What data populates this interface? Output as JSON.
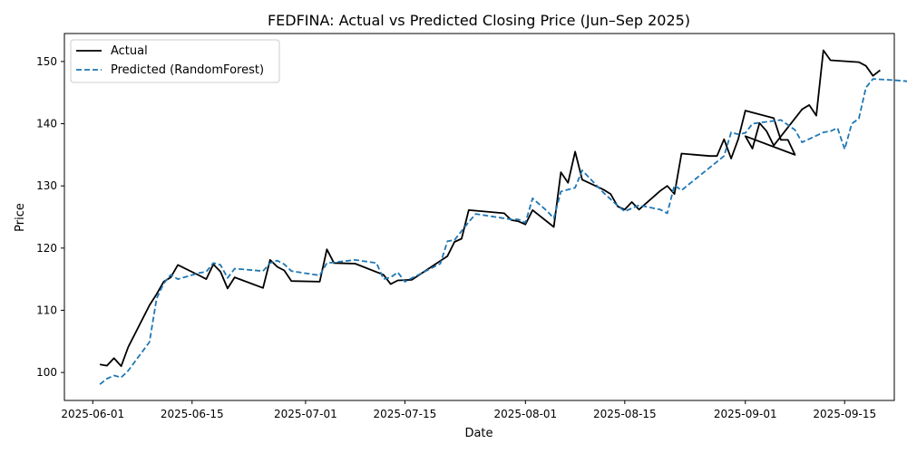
{
  "chart_data": {
    "type": "line",
    "title": "FEDFINA: Actual vs Predicted Closing Price (Jun–Sep 2025)",
    "xlabel": "Date",
    "ylabel": "Price",
    "xlim": [
      "2025-05-28",
      "2025-09-22"
    ],
    "ylim": [
      95.5,
      154.5
    ],
    "grid": false,
    "legend_placement": "top-left",
    "x_ticks": [
      "2025-06-01",
      "2025-06-15",
      "2025-07-01",
      "2025-07-15",
      "2025-08-01",
      "2025-08-15",
      "2025-09-01",
      "2025-09-15"
    ],
    "y_ticks": [
      100,
      110,
      120,
      130,
      140,
      150
    ],
    "series": [
      {
        "name": "Actual",
        "color": "#000000",
        "style": "solid",
        "points": [
          [
            "2025-06-02",
            101.3
          ],
          [
            "2025-06-03",
            101.1
          ],
          [
            "2025-06-04",
            102.3
          ],
          [
            "2025-06-05",
            101.0
          ],
          [
            "2025-06-06",
            104.1
          ],
          [
            "2025-06-09",
            110.8
          ],
          [
            "2025-06-10",
            112.6
          ],
          [
            "2025-06-11",
            114.6
          ],
          [
            "2025-06-12",
            115.3
          ],
          [
            "2025-06-13",
            117.3
          ],
          [
            "2025-06-16",
            115.6
          ],
          [
            "2025-06-17",
            115.0
          ],
          [
            "2025-06-18",
            117.4
          ],
          [
            "2025-06-19",
            116.2
          ],
          [
            "2025-06-20",
            113.5
          ],
          [
            "2025-06-21",
            115.3
          ],
          [
            "2025-06-25",
            113.6
          ],
          [
            "2025-06-26",
            118.1
          ],
          [
            "2025-06-27",
            117.0
          ],
          [
            "2025-06-28",
            116.4
          ],
          [
            "2025-06-29",
            114.7
          ],
          [
            "2025-07-03",
            114.6
          ],
          [
            "2025-07-04",
            119.8
          ],
          [
            "2025-07-05",
            117.6
          ],
          [
            "2025-07-08",
            117.5
          ],
          [
            "2025-07-12",
            115.7
          ],
          [
            "2025-07-13",
            114.2
          ],
          [
            "2025-07-14",
            114.8
          ],
          [
            "2025-07-16",
            114.9
          ],
          [
            "2025-07-21",
            118.7
          ],
          [
            "2025-07-22",
            121.0
          ],
          [
            "2025-07-23",
            121.5
          ],
          [
            "2025-07-24",
            126.1
          ],
          [
            "2025-07-29",
            125.6
          ],
          [
            "2025-07-30",
            124.5
          ],
          [
            "2025-07-31",
            124.3
          ],
          [
            "2025-08-01",
            123.8
          ],
          [
            "2025-08-02",
            126.1
          ],
          [
            "2025-08-05",
            123.4
          ],
          [
            "2025-08-06",
            132.2
          ],
          [
            "2025-08-07",
            130.5
          ],
          [
            "2025-08-08",
            135.5
          ],
          [
            "2025-08-09",
            131.0
          ],
          [
            "2025-08-12",
            129.4
          ],
          [
            "2025-08-13",
            128.7
          ],
          [
            "2025-08-14",
            126.7
          ],
          [
            "2025-08-15",
            126.2
          ],
          [
            "2025-08-16",
            127.4
          ],
          [
            "2025-08-17",
            126.2
          ],
          [
            "2025-08-20",
            129.2
          ],
          [
            "2025-08-21",
            130.0
          ],
          [
            "2025-08-22",
            128.7
          ],
          [
            "2025-08-23",
            135.2
          ],
          [
            "2025-08-27",
            134.8
          ],
          [
            "2025-08-28",
            134.8
          ],
          [
            "2025-08-29",
            137.5
          ],
          [
            "2025-08-30",
            134.4
          ],
          [
            "2025-08-31",
            137.5
          ],
          [
            "2025-09-01",
            142.1
          ],
          [
            "2025-09-05",
            140.9
          ],
          [
            "2025-09-06",
            137.4
          ],
          [
            "2025-09-07",
            137.4
          ],
          [
            "2025-09-08",
            135.0
          ],
          [
            "2025-09-01",
            138.0
          ],
          [
            "2025-09-02",
            136.0
          ],
          [
            "2025-09-03",
            140.1
          ],
          [
            "2025-09-04",
            138.8
          ],
          [
            "2025-09-05",
            136.5
          ],
          [
            "2025-09-09",
            142.3
          ],
          [
            "2025-09-10",
            143.0
          ],
          [
            "2025-09-11",
            141.3
          ],
          [
            "2025-09-12",
            151.8
          ],
          [
            "2025-09-13",
            150.2
          ],
          [
            "2025-09-17",
            149.9
          ],
          [
            "2025-09-18",
            149.3
          ],
          [
            "2025-09-19",
            147.7
          ],
          [
            "2025-09-20",
            148.6
          ]
        ]
      },
      {
        "name": "Predicted (RandomForest)",
        "color": "#1f77b4",
        "style": "dashed",
        "points": [
          [
            "2025-06-02",
            98.1
          ],
          [
            "2025-06-03",
            99.0
          ],
          [
            "2025-06-04",
            99.5
          ],
          [
            "2025-06-05",
            99.2
          ],
          [
            "2025-06-06",
            100.3
          ],
          [
            "2025-06-09",
            104.9
          ],
          [
            "2025-06-10",
            111.9
          ],
          [
            "2025-06-11",
            114.3
          ],
          [
            "2025-06-12",
            115.7
          ],
          [
            "2025-06-13",
            115.0
          ],
          [
            "2025-06-16",
            116.0
          ],
          [
            "2025-06-17",
            116.2
          ],
          [
            "2025-06-18",
            117.6
          ],
          [
            "2025-06-19",
            117.3
          ],
          [
            "2025-06-20",
            115.2
          ],
          [
            "2025-06-21",
            116.7
          ],
          [
            "2025-06-25",
            116.3
          ],
          [
            "2025-06-26",
            117.6
          ],
          [
            "2025-06-27",
            118.0
          ],
          [
            "2025-06-28",
            117.4
          ],
          [
            "2025-06-29",
            116.3
          ],
          [
            "2025-07-03",
            115.6
          ],
          [
            "2025-07-04",
            117.6
          ],
          [
            "2025-07-05",
            117.7
          ],
          [
            "2025-07-08",
            118.1
          ],
          [
            "2025-07-11",
            117.6
          ],
          [
            "2025-07-12",
            115.0
          ],
          [
            "2025-07-13",
            115.3
          ],
          [
            "2025-07-14",
            116.1
          ],
          [
            "2025-07-15",
            114.6
          ],
          [
            "2025-07-20",
            117.5
          ],
          [
            "2025-07-21",
            121.1
          ],
          [
            "2025-07-22",
            121.3
          ],
          [
            "2025-07-24",
            124.2
          ],
          [
            "2025-07-25",
            125.5
          ],
          [
            "2025-07-30",
            124.6
          ],
          [
            "2025-07-31",
            124.6
          ],
          [
            "2025-08-01",
            124.1
          ],
          [
            "2025-08-02",
            128.0
          ],
          [
            "2025-08-04",
            126.0
          ],
          [
            "2025-08-05",
            124.8
          ],
          [
            "2025-08-06",
            129.1
          ],
          [
            "2025-08-08",
            129.7
          ],
          [
            "2025-08-09",
            132.5
          ],
          [
            "2025-08-12",
            128.9
          ],
          [
            "2025-08-14",
            126.8
          ],
          [
            "2025-08-15",
            125.9
          ],
          [
            "2025-08-17",
            126.9
          ],
          [
            "2025-08-20",
            126.2
          ],
          [
            "2025-08-21",
            125.6
          ],
          [
            "2025-08-22",
            130.1
          ],
          [
            "2025-08-23",
            129.3
          ],
          [
            "2025-08-29",
            134.8
          ],
          [
            "2025-08-30",
            138.6
          ],
          [
            "2025-08-31",
            138.3
          ],
          [
            "2025-09-01",
            138.5
          ],
          [
            "2025-09-02",
            140.0
          ],
          [
            "2025-09-06",
            140.6
          ],
          [
            "2025-09-08",
            139.0
          ],
          [
            "2025-09-09",
            137.0
          ],
          [
            "2025-09-12",
            138.6
          ],
          [
            "2025-09-13",
            138.8
          ],
          [
            "2025-09-14",
            139.3
          ],
          [
            "2025-09-15",
            135.9
          ],
          [
            "2025-09-16",
            140.0
          ],
          [
            "2025-09-17",
            140.8
          ],
          [
            "2025-09-18",
            145.8
          ],
          [
            "2025-09-19",
            147.2
          ],
          [
            "2025-09-22",
            147.0
          ],
          [
            "2025-09-25",
            146.7
          ],
          [
            "2025-09-26",
            146.6
          ]
        ]
      }
    ]
  }
}
